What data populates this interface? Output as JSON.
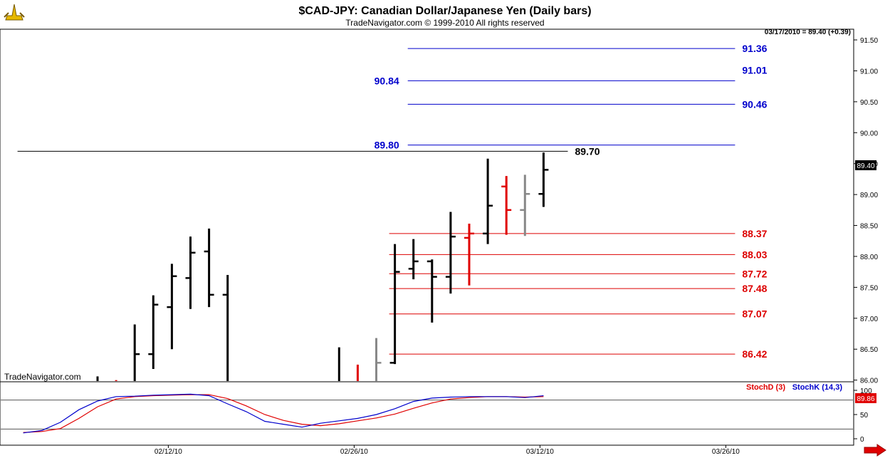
{
  "chart_data": {
    "type": "ohlc",
    "title": "$CAD-JPY:  Canadian Dollar/Japanese Yen  (Daily bars)",
    "subtitle": "TradeNavigator.com © 1999-2010 All rights reserved",
    "watermark": "TradeNavigator.com",
    "readout": "03/17/2010 = 89.40 (+0.39)",
    "last_price": "89.40",
    "ylim": [
      85.85,
      91.65
    ],
    "y_ticks": [
      "91.50",
      "91.00",
      "90.50",
      "90.00",
      "89.50",
      "89.00",
      "88.50",
      "88.00",
      "87.50",
      "87.00",
      "86.50",
      "86.00"
    ],
    "x_ticks": [
      {
        "label": "02/12/10",
        "index": 4
      },
      {
        "label": "02/26/10",
        "index": 14
      },
      {
        "label": "03/12/10",
        "index": 24
      },
      {
        "label": "03/26/10",
        "index": 34
      }
    ],
    "colors": {
      "up": "#000000",
      "down_red": "#e00000",
      "inside_gray": "#888888",
      "level_blue": "#0000cc",
      "level_red": "#dd0000"
    },
    "bars": [
      {
        "index": 0,
        "open": null,
        "high": 86.06,
        "low": 85.85,
        "close": null,
        "color": "#000000"
      },
      {
        "index": 1,
        "open": null,
        "high": 86.0,
        "low": 85.85,
        "close": null,
        "color": "#e00000"
      },
      {
        "index": 2,
        "open": null,
        "high": 86.9,
        "low": 85.85,
        "close": 86.42,
        "color": "#000000"
      },
      {
        "index": 3,
        "open": 86.42,
        "high": 87.37,
        "low": 86.18,
        "close": 87.22,
        "color": "#000000"
      },
      {
        "index": 4,
        "open": 87.18,
        "high": 87.88,
        "low": 86.5,
        "close": 87.68,
        "color": "#000000"
      },
      {
        "index": 5,
        "open": 87.65,
        "high": 88.32,
        "low": 87.15,
        "close": 88.06,
        "color": "#000000"
      },
      {
        "index": 6,
        "open": 88.08,
        "high": 88.45,
        "low": 87.18,
        "close": 87.38,
        "color": "#000000"
      },
      {
        "index": 7,
        "open": 87.38,
        "high": 87.7,
        "low": 85.85,
        "close": null,
        "color": "#000000"
      },
      {
        "index": 13,
        "open": null,
        "high": 86.53,
        "low": 85.85,
        "close": null,
        "color": "#000000"
      },
      {
        "index": 14,
        "open": null,
        "high": 86.25,
        "low": 85.85,
        "close": null,
        "color": "#e00000"
      },
      {
        "index": 15,
        "open": null,
        "high": 86.68,
        "low": 85.85,
        "close": 86.28,
        "color": "#888888"
      },
      {
        "index": 16,
        "open": 86.28,
        "high": 88.2,
        "low": 86.26,
        "close": 87.75,
        "color": "#000000"
      },
      {
        "index": 17,
        "open": 87.8,
        "high": 88.28,
        "low": 87.63,
        "close": 87.92,
        "color": "#000000"
      },
      {
        "index": 18,
        "open": 87.92,
        "high": 87.95,
        "low": 86.93,
        "close": 87.67,
        "color": "#000000"
      },
      {
        "index": 19,
        "open": 87.67,
        "high": 88.72,
        "low": 87.4,
        "close": 88.32,
        "color": "#000000"
      },
      {
        "index": 20,
        "open": 88.3,
        "high": 88.53,
        "low": 87.53,
        "close": 88.37,
        "color": "#e00000"
      },
      {
        "index": 21,
        "open": 88.37,
        "high": 89.58,
        "low": 88.2,
        "close": 88.82,
        "color": "#000000"
      },
      {
        "index": 22,
        "open": 89.13,
        "high": 89.3,
        "low": 88.35,
        "close": 88.75,
        "color": "#e00000"
      },
      {
        "index": 23,
        "open": 88.75,
        "high": 89.32,
        "low": 88.33,
        "close": 89.01,
        "color": "#888888"
      },
      {
        "index": 24,
        "open": 89.01,
        "high": 89.68,
        "low": 88.8,
        "close": 89.4,
        "color": "#000000"
      }
    ],
    "levels": [
      {
        "value": 91.36,
        "label": "91.36",
        "color": "#0000cc",
        "x_start": 17,
        "x_end": 34,
        "label_side": "right"
      },
      {
        "value": 90.84,
        "label": "90.84",
        "color": "#0000cc",
        "x_start": 17,
        "x_end": 34,
        "label_side": "left"
      },
      {
        "value": 91.01,
        "label": "91.01",
        "color": "#0000cc",
        "x_start": null,
        "x_end": null,
        "label_side": "right"
      },
      {
        "value": 90.46,
        "label": "90.46",
        "color": "#0000cc",
        "x_start": 17,
        "x_end": 34,
        "label_side": "right"
      },
      {
        "value": 89.8,
        "label": "89.80",
        "color": "#0000cc",
        "x_start": 17,
        "x_end": 34,
        "label_side": "left"
      },
      {
        "value": 89.7,
        "label": "89.70",
        "color": "#000000",
        "x_start": -4,
        "x_end": 25,
        "label_side": "right"
      },
      {
        "value": 88.37,
        "label": "88.37",
        "color": "#dd0000",
        "x_start": 16,
        "x_end": 34,
        "label_side": "right"
      },
      {
        "value": 88.03,
        "label": "88.03",
        "color": "#dd0000",
        "x_start": 16,
        "x_end": 34,
        "label_side": "right"
      },
      {
        "value": 87.72,
        "label": "87.72",
        "color": "#dd0000",
        "x_start": 16,
        "x_end": 34,
        "label_side": "right"
      },
      {
        "value": 87.48,
        "label": "87.48",
        "color": "#dd0000",
        "x_start": 16,
        "x_end": 34,
        "label_side": "right"
      },
      {
        "value": 87.07,
        "label": "87.07",
        "color": "#dd0000",
        "x_start": 16,
        "x_end": 34,
        "label_side": "right"
      },
      {
        "value": 86.42,
        "label": "86.42",
        "color": "#dd0000",
        "x_start": 16,
        "x_end": 34,
        "label_side": "right"
      }
    ],
    "stochastic": {
      "ylim": [
        0,
        100
      ],
      "y_ticks": [
        "100",
        "50",
        "0"
      ],
      "ref_lines": [
        80,
        20
      ],
      "stochd_label": "StochD (3)",
      "stochk_label": "StochK (14,3)",
      "stochd_color": "#e00000",
      "stochk_color": "#0000cc",
      "last_value": "89.86",
      "x": [
        -4,
        -3,
        -2,
        -1,
        0,
        1,
        2,
        3,
        4,
        5,
        6,
        7,
        8,
        9,
        10,
        11,
        12,
        13,
        14,
        15,
        16,
        17,
        18,
        19,
        20,
        21,
        22,
        23,
        24
      ],
      "stochk": [
        12,
        17,
        34,
        60,
        78,
        87,
        88,
        90,
        91,
        92,
        89,
        72,
        56,
        36,
        30,
        24,
        32,
        37,
        42,
        50,
        62,
        77,
        84,
        86,
        87,
        87,
        87,
        85,
        89
      ],
      "stochd": [
        13,
        15,
        21,
        42,
        66,
        82,
        87,
        89,
        90,
        91,
        91,
        83,
        68,
        50,
        38,
        30,
        27,
        31,
        37,
        43,
        51,
        63,
        74,
        82,
        85,
        87,
        87,
        86,
        87
      ]
    }
  }
}
